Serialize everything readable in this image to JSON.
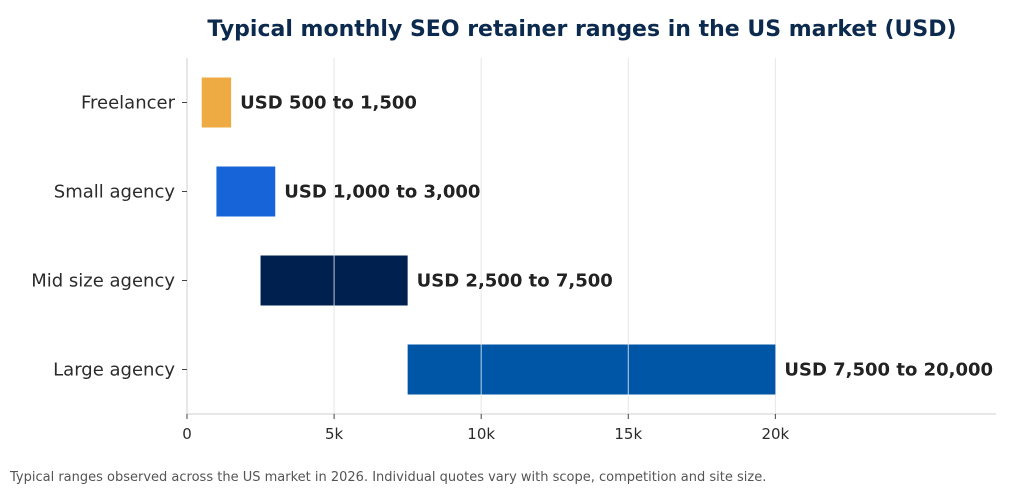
{
  "chart_data": {
    "type": "bar",
    "orientation": "horizontal",
    "subtype": "floating-range",
    "title": "Typical monthly SEO retainer ranges in the US market (USD)",
    "xlabel": "",
    "ylabel": "",
    "categories": [
      "Freelancer",
      "Small agency",
      "Mid size agency",
      "Large agency"
    ],
    "ranges": [
      {
        "low": 500,
        "high": 1500,
        "label": "USD 500 to 1,500",
        "color": "#efab43"
      },
      {
        "low": 1000,
        "high": 3000,
        "label": "USD 1,000 to 3,000",
        "color": "#1764d8"
      },
      {
        "low": 2500,
        "high": 7500,
        "label": "USD 2,500 to 7,500",
        "color": "#002150"
      },
      {
        "low": 7500,
        "high": 20000,
        "label": "USD 7,500 to 20,000",
        "color": "#0056a6"
      }
    ],
    "xlim": [
      0,
      27500
    ],
    "xticks": [
      0,
      5000,
      10000,
      15000,
      20000
    ],
    "xtick_labels": [
      "0",
      "5k",
      "10k",
      "15k",
      "20k"
    ],
    "grid": "vertical",
    "legend": "none"
  },
  "footnote": "Typical ranges observed across the US market in 2026. Individual quotes vary with scope, competition and site size."
}
